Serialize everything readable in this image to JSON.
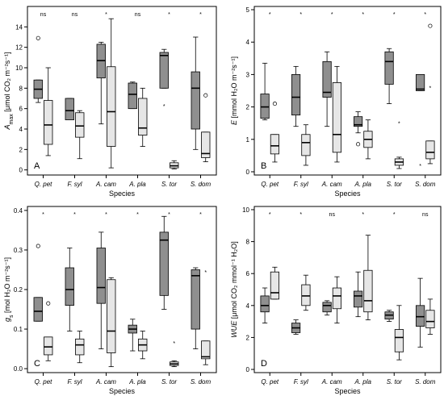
{
  "colors": {
    "dark_box": "#8f8f8f",
    "light_box": "#e6e6e6",
    "frame": "#000000"
  },
  "chart_data": [
    {
      "type": "box",
      "panel_letter": "A",
      "ylabel_prefix": "A",
      "ylabel_sub": "max",
      "ylabel_rest": " [μmol CO₂ m⁻²s⁻¹]",
      "xlabel": "Species",
      "categories": [
        "Q. pet",
        "F. syl",
        "A. cam",
        "A. pla",
        "S. tor",
        "S. dom"
      ],
      "significance": [
        "ns",
        "ns",
        "*",
        "ns",
        "*",
        "*"
      ],
      "ylim": [
        -0.5,
        16
      ],
      "yticks": [
        0,
        2,
        4,
        6,
        8,
        10,
        12,
        14
      ],
      "series": [
        {
          "boxes": [
            {
              "min": 6.6,
              "q1": 7.0,
              "median": 7.9,
              "q3": 8.8,
              "max": 8.8,
              "outliers": []
            },
            {
              "min": 4.9,
              "q1": 4.9,
              "median": 5.8,
              "q3": 7.0,
              "max": 7.0,
              "outliers": []
            },
            {
              "min": 4.5,
              "q1": 9.0,
              "median": 10.7,
              "q3": 12.3,
              "max": 12.5,
              "outliers": []
            },
            {
              "min": 6.0,
              "q1": 6.0,
              "median": 7.4,
              "q3": 8.5,
              "max": 8.6,
              "outliers": []
            },
            {
              "min": 8.0,
              "q1": 8.0,
              "median": 11.2,
              "q3": 11.5,
              "max": 11.8,
              "outliers": []
            },
            {
              "min": 2.0,
              "q1": 4.0,
              "median": 8.0,
              "q3": 9.6,
              "max": 13.0,
              "outliers": []
            }
          ]
        },
        {
          "boxes": [
            {
              "min": 1.4,
              "q1": 2.5,
              "median": 4.4,
              "q3": 6.8,
              "max": 10.0,
              "outliers": []
            },
            {
              "min": 1.1,
              "q1": 3.2,
              "median": 4.3,
              "q3": 5.6,
              "max": 5.8,
              "outliers": []
            },
            {
              "min": 0.2,
              "q1": 2.3,
              "median": 5.7,
              "q3": 10.1,
              "max": 14.8,
              "outliers": []
            },
            {
              "min": 2.3,
              "q1": 3.4,
              "median": 4.1,
              "q3": 7.0,
              "max": 8.0,
              "outliers": []
            },
            {
              "min": 0.1,
              "q1": 0.2,
              "median": 0.4,
              "q3": 0.7,
              "max": 0.9,
              "outliers": []
            },
            {
              "min": 0.8,
              "q1": 1.2,
              "median": 1.6,
              "q3": 3.7,
              "max": 3.7,
              "outliers": []
            }
          ]
        }
      ],
      "outlier_marks": [
        {
          "cat": 0,
          "series": 0,
          "value": 12.9,
          "symbol": "circle"
        },
        {
          "cat": 4,
          "series": 0,
          "value": 6.3,
          "symbol": "star"
        },
        {
          "cat": 5,
          "series": 1,
          "value": 7.3,
          "symbol": "circle"
        }
      ]
    },
    {
      "type": "box",
      "panel_letter": "B",
      "ylabel_prefix": "E",
      "ylabel_sub": "",
      "ylabel_rest": " [mmol H₂O m⁻²s⁻¹]",
      "xlabel": "Species",
      "categories": [
        "Q. pet",
        "F. syl",
        "A. cam",
        "A. pla",
        "S. tor",
        "S. dom"
      ],
      "significance": [
        "*",
        "*",
        "*",
        "*",
        "*",
        "*"
      ],
      "ylim": [
        -0.1,
        5.1
      ],
      "yticks": [
        0,
        1,
        2,
        3,
        4,
        5
      ],
      "series": [
        {
          "boxes": [
            {
              "min": 1.6,
              "q1": 1.65,
              "median": 2.0,
              "q3": 2.4,
              "max": 3.35,
              "outliers": []
            },
            {
              "min": 1.4,
              "q1": 1.75,
              "median": 2.3,
              "q3": 3.0,
              "max": 3.25,
              "outliers": []
            },
            {
              "min": 1.4,
              "q1": 2.3,
              "median": 2.45,
              "q3": 3.4,
              "max": 3.7,
              "outliers": []
            },
            {
              "min": 1.2,
              "q1": 1.4,
              "median": 1.45,
              "q3": 1.7,
              "max": 1.85,
              "outliers": []
            },
            {
              "min": 2.1,
              "q1": 2.7,
              "median": 3.4,
              "q3": 3.7,
              "max": 3.8,
              "outliers": []
            },
            {
              "min": 2.5,
              "q1": 2.5,
              "median": 2.55,
              "q3": 3.0,
              "max": 3.0,
              "outliers": []
            }
          ]
        },
        {
          "boxes": [
            {
              "min": 0.3,
              "q1": 0.55,
              "median": 0.8,
              "q3": 1.15,
              "max": 1.15,
              "outliers": []
            },
            {
              "min": 0.2,
              "q1": 0.5,
              "median": 0.9,
              "q3": 1.15,
              "max": 1.45,
              "outliers": []
            },
            {
              "min": 0.3,
              "q1": 0.6,
              "median": 1.15,
              "q3": 2.75,
              "max": 3.25,
              "outliers": []
            },
            {
              "min": 0.4,
              "q1": 0.75,
              "median": 1.0,
              "q3": 1.25,
              "max": 1.6,
              "outliers": []
            },
            {
              "min": 0.1,
              "q1": 0.2,
              "median": 0.3,
              "q3": 0.4,
              "max": 0.45,
              "outliers": []
            },
            {
              "min": 0.25,
              "q1": 0.4,
              "median": 0.6,
              "q3": 0.95,
              "max": 0.95,
              "outliers": []
            }
          ]
        }
      ],
      "outlier_marks": [
        {
          "cat": 0,
          "series": 1,
          "value": 2.1,
          "symbol": "circle"
        },
        {
          "cat": 3,
          "series": 0,
          "value": 0.85,
          "symbol": "circle"
        },
        {
          "cat": 4,
          "series": 1,
          "value": 1.5,
          "symbol": "star"
        },
        {
          "cat": 5,
          "series": 0,
          "value": 0.2,
          "symbol": "star"
        },
        {
          "cat": 5,
          "series": 1,
          "value": 4.5,
          "symbol": "circle"
        },
        {
          "cat": 5,
          "series": 1,
          "value": 2.6,
          "symbol": "star"
        }
      ]
    },
    {
      "type": "box",
      "panel_letter": "C",
      "ylabel_prefix": "g",
      "ylabel_sub": "s",
      "ylabel_rest": " [mol H₂O m⁻²s⁻¹]",
      "xlabel": "Species",
      "categories": [
        "Q. pet",
        "F. syl",
        "A. cam",
        "A. pla",
        "S. tor",
        "S. dom"
      ],
      "significance": [
        "*",
        "*",
        "*",
        "*",
        "*",
        "*"
      ],
      "ylim": [
        -0.01,
        0.41
      ],
      "yticks": [
        0.0,
        0.1,
        0.2,
        0.3,
        0.4
      ],
      "ytick_labels": [
        "0.0",
        "0.1",
        "0.2",
        "0.3",
        "0.4"
      ],
      "series": [
        {
          "boxes": [
            {
              "min": 0.12,
              "q1": 0.12,
              "median": 0.145,
              "q3": 0.18,
              "max": 0.18,
              "outliers": []
            },
            {
              "min": 0.095,
              "q1": 0.16,
              "median": 0.2,
              "q3": 0.255,
              "max": 0.305,
              "outliers": []
            },
            {
              "min": 0.05,
              "q1": 0.165,
              "median": 0.205,
              "q3": 0.305,
              "max": 0.345,
              "outliers": []
            },
            {
              "min": 0.045,
              "q1": 0.09,
              "median": 0.1,
              "q3": 0.11,
              "max": 0.125,
              "outliers": []
            },
            {
              "min": 0.15,
              "q1": 0.185,
              "median": 0.325,
              "q3": 0.345,
              "max": 0.385,
              "outliers": []
            },
            {
              "min": 0.05,
              "q1": 0.1,
              "median": 0.235,
              "q3": 0.25,
              "max": 0.255,
              "outliers": []
            }
          ]
        },
        {
          "boxes": [
            {
              "min": 0.02,
              "q1": 0.035,
              "median": 0.055,
              "q3": 0.08,
              "max": 0.08,
              "outliers": []
            },
            {
              "min": 0.015,
              "q1": 0.035,
              "median": 0.06,
              "q3": 0.075,
              "max": 0.095,
              "outliers": []
            },
            {
              "min": 0.005,
              "q1": 0.04,
              "median": 0.095,
              "q3": 0.225,
              "max": 0.23,
              "outliers": []
            },
            {
              "min": 0.025,
              "q1": 0.045,
              "median": 0.06,
              "q3": 0.075,
              "max": 0.095,
              "outliers": []
            },
            {
              "min": 0.005,
              "q1": 0.008,
              "median": 0.012,
              "q3": 0.017,
              "max": 0.02,
              "outliers": []
            },
            {
              "min": 0.01,
              "q1": 0.025,
              "median": 0.03,
              "q3": 0.07,
              "max": 0.07,
              "outliers": []
            }
          ]
        }
      ],
      "outlier_marks": [
        {
          "cat": 0,
          "series": 0,
          "value": 0.31,
          "symbol": "circle"
        },
        {
          "cat": 0,
          "series": 1,
          "value": 0.165,
          "symbol": "circle"
        },
        {
          "cat": 4,
          "series": 1,
          "value": 0.065,
          "symbol": "star"
        },
        {
          "cat": 5,
          "series": 1,
          "value": 0.245,
          "symbol": "star"
        }
      ]
    },
    {
      "type": "box",
      "panel_letter": "D",
      "ylabel_prefix": "WUE",
      "ylabel_sub": "",
      "ylabel_rest": " [μmol CO₂ mmol⁻¹ H₂O]",
      "xlabel": "Species",
      "categories": [
        "Q. pet",
        "F. syl",
        "A. cam",
        "A. pla",
        "S. tor",
        "S. dom"
      ],
      "significance": [
        "*",
        "*",
        "ns",
        "*",
        "*",
        "ns"
      ],
      "ylim": [
        -0.2,
        10.2
      ],
      "yticks": [
        0,
        2,
        4,
        6,
        8,
        10
      ],
      "series": [
        {
          "boxes": [
            {
              "min": 2.9,
              "q1": 3.6,
              "median": 4.0,
              "q3": 4.6,
              "max": 5.1,
              "outliers": []
            },
            {
              "min": 2.2,
              "q1": 2.3,
              "median": 2.6,
              "q3": 2.9,
              "max": 3.1,
              "outliers": []
            },
            {
              "min": 3.4,
              "q1": 3.6,
              "median": 4.0,
              "q3": 4.2,
              "max": 4.3,
              "outliers": []
            },
            {
              "min": 3.3,
              "q1": 3.9,
              "median": 4.6,
              "q3": 4.9,
              "max": 6.1,
              "outliers": []
            },
            {
              "min": 3.0,
              "q1": 3.15,
              "median": 3.4,
              "q3": 3.6,
              "max": 3.7,
              "outliers": []
            },
            {
              "min": 1.4,
              "q1": 2.7,
              "median": 3.3,
              "q3": 4.0,
              "max": 5.7,
              "outliers": []
            }
          ]
        },
        {
          "boxes": [
            {
              "min": 4.4,
              "q1": 4.4,
              "median": 4.8,
              "q3": 6.1,
              "max": 6.4,
              "outliers": []
            },
            {
              "min": 3.7,
              "q1": 4.0,
              "median": 4.6,
              "q3": 5.3,
              "max": 5.9,
              "outliers": []
            },
            {
              "min": 2.9,
              "q1": 3.8,
              "median": 4.6,
              "q3": 5.1,
              "max": 5.8,
              "outliers": []
            },
            {
              "min": 3.1,
              "q1": 3.6,
              "median": 4.3,
              "q3": 6.2,
              "max": 8.4,
              "outliers": []
            },
            {
              "min": 0.6,
              "q1": 1.1,
              "median": 2.0,
              "q3": 2.5,
              "max": 4.0,
              "outliers": []
            },
            {
              "min": 2.2,
              "q1": 2.6,
              "median": 3.0,
              "q3": 3.7,
              "max": 4.4,
              "outliers": []
            }
          ]
        }
      ],
      "outlier_marks": []
    }
  ]
}
